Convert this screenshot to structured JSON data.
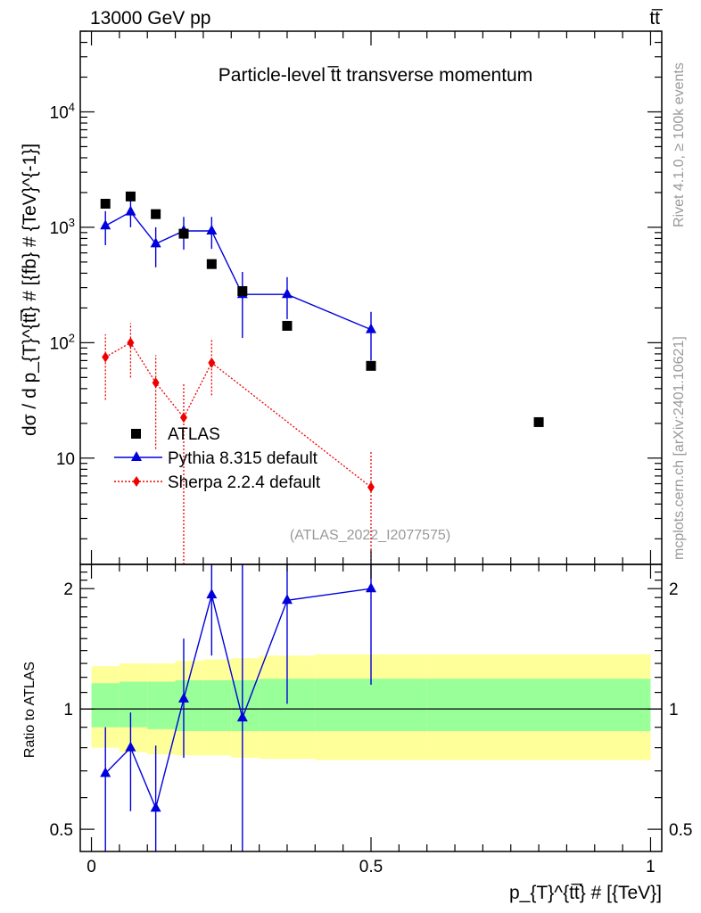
{
  "header": {
    "energy_label": "13000 GeV pp",
    "process_label": "tt̅",
    "plot_title": "Particle-level t̅t transverse momentum",
    "side_rivet": "Rivet 4.1.0, ≥ 100k events",
    "side_mcplots": "mcplots.cern.ch [arXiv:2401.10621]",
    "analysis_id": "(ATLAS_2022_I2077575)"
  },
  "chart_data": {
    "type": "scatter",
    "main_panel": {
      "ylabel": "dσ / d p_{T}^{tt̅} # [{fb} # {TeV}^{-1}]",
      "yscale": "log",
      "ylim": [
        1.2,
        50000
      ],
      "y_ticks": [
        {
          "value": 10,
          "label": "10"
        },
        {
          "value": 100,
          "label": "10^2"
        },
        {
          "value": 1000,
          "label": "10^3"
        },
        {
          "value": 10000,
          "label": "10^4"
        }
      ]
    },
    "ratio_panel": {
      "ylabel": "Ratio to ATLAS",
      "yscale": "log",
      "ylim": [
        0.44,
        2.3
      ],
      "y_ticks": [
        {
          "value": 0.5,
          "label": "0.5"
        },
        {
          "value": 1,
          "label": "1"
        },
        {
          "value": 2,
          "label": "2"
        }
      ]
    },
    "xlabel": "p_{T}^{tt̅} # [{TeV}]",
    "xlim": [
      -0.02,
      1.02
    ],
    "x_ticks": [
      {
        "value": 0,
        "label": "0"
      },
      {
        "value": 0.5,
        "label": "0.5"
      },
      {
        "value": 1,
        "label": "1"
      }
    ],
    "legend": {
      "position": "lower-left",
      "entries": [
        "ATLAS",
        "Pythia 8.315 default",
        "Sherpa 2.2.4 default"
      ]
    },
    "atlas": {
      "name": "ATLAS",
      "color": "#000000",
      "x": [
        0.025,
        0.07,
        0.115,
        0.165,
        0.215,
        0.27,
        0.35,
        0.5,
        0.8
      ],
      "y": [
        1600,
        1850,
        1300,
        880,
        480,
        280,
        140,
        63,
        20.5
      ]
    },
    "pythia": {
      "name": "Pythia 8.315 default",
      "color": "#0000dd",
      "x": [
        0.025,
        0.07,
        0.115,
        0.165,
        0.215,
        0.27,
        0.35,
        0.5
      ],
      "y": [
        1030,
        1360,
        720,
        930,
        930,
        262,
        262,
        130
      ],
      "ylow": [
        700,
        1000,
        450,
        640,
        650,
        110,
        160,
        70
      ],
      "yhigh": [
        1380,
        1800,
        1000,
        1230,
        1230,
        410,
        370,
        185
      ]
    },
    "sherpa": {
      "name": "Sherpa 2.2.4 default",
      "color": "#ee0000",
      "x": [
        0.025,
        0.07,
        0.115,
        0.165,
        0.215,
        0.5
      ],
      "y": [
        75,
        100,
        45,
        22.5,
        67,
        5.6
      ],
      "ylow": [
        32,
        50,
        12,
        1.2,
        35,
        1.2
      ],
      "yhigh": [
        118,
        148,
        78,
        45,
        106,
        11.5
      ]
    },
    "pythia_ratio": {
      "x": [
        0.025,
        0.07,
        0.115,
        0.165,
        0.215,
        0.27,
        0.35,
        0.5
      ],
      "y": [
        0.69,
        0.8,
        0.565,
        1.06,
        1.93,
        0.95,
        1.87,
        2.0
      ],
      "ylow": [
        0.4,
        0.555,
        0.44,
        0.755,
        1.36,
        0.44,
        1.03,
        1.15
      ],
      "yhigh": [
        0.9,
        0.98,
        0.81,
        1.5,
        2.3,
        2.3,
        2.3,
        2.3
      ]
    },
    "atlas_uncertainty_bands": {
      "x_edges": [
        0,
        0.05,
        0.1,
        0.15,
        0.2,
        0.25,
        0.3,
        0.4,
        0.6,
        1.0
      ],
      "inner_low": [
        0.9,
        0.9,
        0.89,
        0.88,
        0.88,
        0.88,
        0.88,
        0.88,
        0.88
      ],
      "inner_high": [
        1.16,
        1.17,
        1.17,
        1.18,
        1.18,
        1.18,
        1.19,
        1.19,
        1.19
      ],
      "outer_low": [
        0.8,
        0.78,
        0.77,
        0.765,
        0.765,
        0.755,
        0.75,
        0.745,
        0.745
      ],
      "outer_high": [
        1.28,
        1.3,
        1.3,
        1.32,
        1.33,
        1.34,
        1.36,
        1.37,
        1.37
      ],
      "inner_color": "#99ff99",
      "outer_color": "#ffff99"
    }
  }
}
